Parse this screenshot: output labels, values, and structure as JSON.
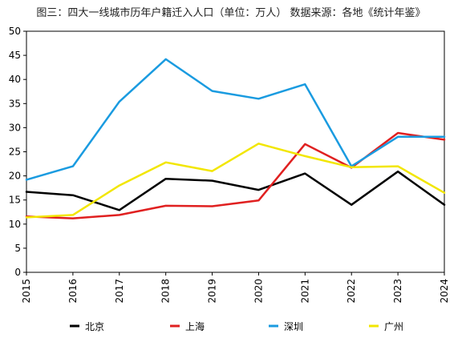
{
  "chart_data": {
    "type": "line",
    "title": "图三：四大一线城市历年户籍迁入人口（单位：万人）  数据来源：各地《统计年鉴》",
    "xlabel": "",
    "ylabel": "",
    "x": [
      "2015",
      "2016",
      "2017",
      "2018",
      "2019",
      "2020",
      "2021",
      "2022",
      "2023",
      "2024"
    ],
    "ylim": [
      0,
      50
    ],
    "yticks": [
      0,
      5,
      10,
      15,
      20,
      25,
      30,
      35,
      40,
      45,
      50
    ],
    "grid": false,
    "legend_position": "bottom",
    "series": [
      {
        "name": "北京",
        "color": "#000000",
        "values": [
          16.7,
          16.0,
          12.9,
          19.4,
          19.0,
          17.1,
          20.5,
          14.0,
          20.9,
          14.0
        ]
      },
      {
        "name": "上海",
        "color": "#e02020",
        "values": [
          11.6,
          11.2,
          11.9,
          13.8,
          13.7,
          14.9,
          26.6,
          21.7,
          28.9,
          27.5
        ]
      },
      {
        "name": "深圳",
        "color": "#1a9be0",
        "values": [
          19.2,
          22.0,
          35.4,
          44.2,
          37.6,
          36.0,
          39.0,
          22.0,
          28.1,
          28.1
        ]
      },
      {
        "name": "广州",
        "color": "#f2e600",
        "values": [
          11.4,
          11.9,
          18.0,
          22.8,
          21.0,
          26.7,
          24.1,
          21.8,
          22.0,
          16.5
        ]
      }
    ]
  }
}
